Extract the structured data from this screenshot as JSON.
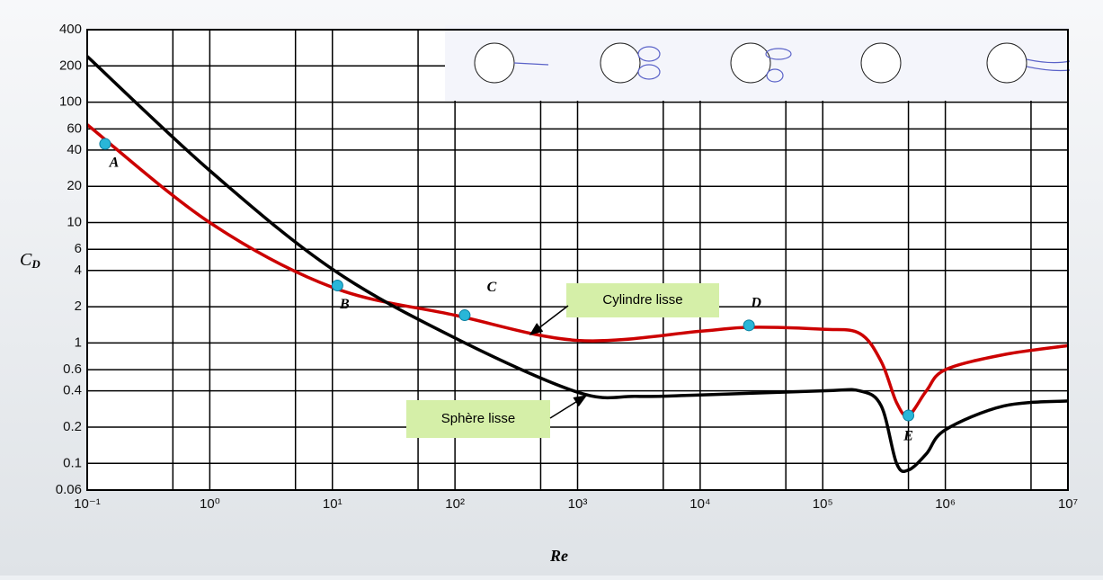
{
  "chart_data": {
    "type": "line",
    "xlabel": "Re",
    "ylabel": {
      "symbol": "C",
      "subscript": "D"
    },
    "xscale": "log",
    "yscale": "log",
    "grid": true,
    "xlim": [
      0.1,
      10000000
    ],
    "ylim": [
      0.06,
      400
    ],
    "xticks": [
      {
        "value": 0.1,
        "label": "10⁻¹"
      },
      {
        "value": 1,
        "label": "10⁰"
      },
      {
        "value": 10,
        "label": "10¹"
      },
      {
        "value": 100,
        "label": "10²"
      },
      {
        "value": 1000,
        "label": "10³"
      },
      {
        "value": 10000,
        "label": "10⁴"
      },
      {
        "value": 100000,
        "label": "10⁵"
      },
      {
        "value": 1000000,
        "label": "10⁶"
      },
      {
        "value": 10000000,
        "label": "10⁷"
      }
    ],
    "x_minor_grid": [
      0.5,
      5,
      50,
      500,
      5000,
      50000,
      500000,
      5000000
    ],
    "yticks": [
      400,
      200,
      100,
      60,
      40,
      20,
      10,
      6,
      4,
      2,
      1,
      0.6,
      0.4,
      0.2,
      0.1,
      0.06
    ],
    "series": [
      {
        "name": "Cylindre lisse",
        "color": "#cc0000",
        "x": [
          0.1,
          1,
          10,
          100,
          1000,
          10000,
          25000,
          100000,
          200000,
          300000,
          400000,
          500000,
          700000,
          1000000,
          3000000,
          10000000
        ],
        "values": [
          65,
          10,
          2.9,
          1.7,
          1.05,
          1.25,
          1.35,
          1.3,
          1.2,
          0.7,
          0.32,
          0.25,
          0.4,
          0.6,
          0.8,
          0.95
        ]
      },
      {
        "name": "Sphère lisse",
        "color": "#000000",
        "x": [
          0.1,
          1,
          10,
          100,
          1000,
          3000,
          10000,
          100000,
          200000,
          300000,
          400000,
          500000,
          700000,
          1000000,
          3000000,
          10000000
        ],
        "values": [
          240,
          27,
          4.1,
          1.1,
          0.39,
          0.36,
          0.37,
          0.4,
          0.4,
          0.3,
          0.1,
          0.088,
          0.12,
          0.19,
          0.3,
          0.33
        ]
      }
    ],
    "points": {
      "color": "#29b6d8",
      "labels": [
        "A",
        "B",
        "C",
        "D",
        "E"
      ],
      "x": [
        0.14,
        11,
        120,
        25000,
        500000
      ],
      "values": [
        45,
        3,
        1.7,
        1.4,
        0.25
      ]
    }
  }
}
